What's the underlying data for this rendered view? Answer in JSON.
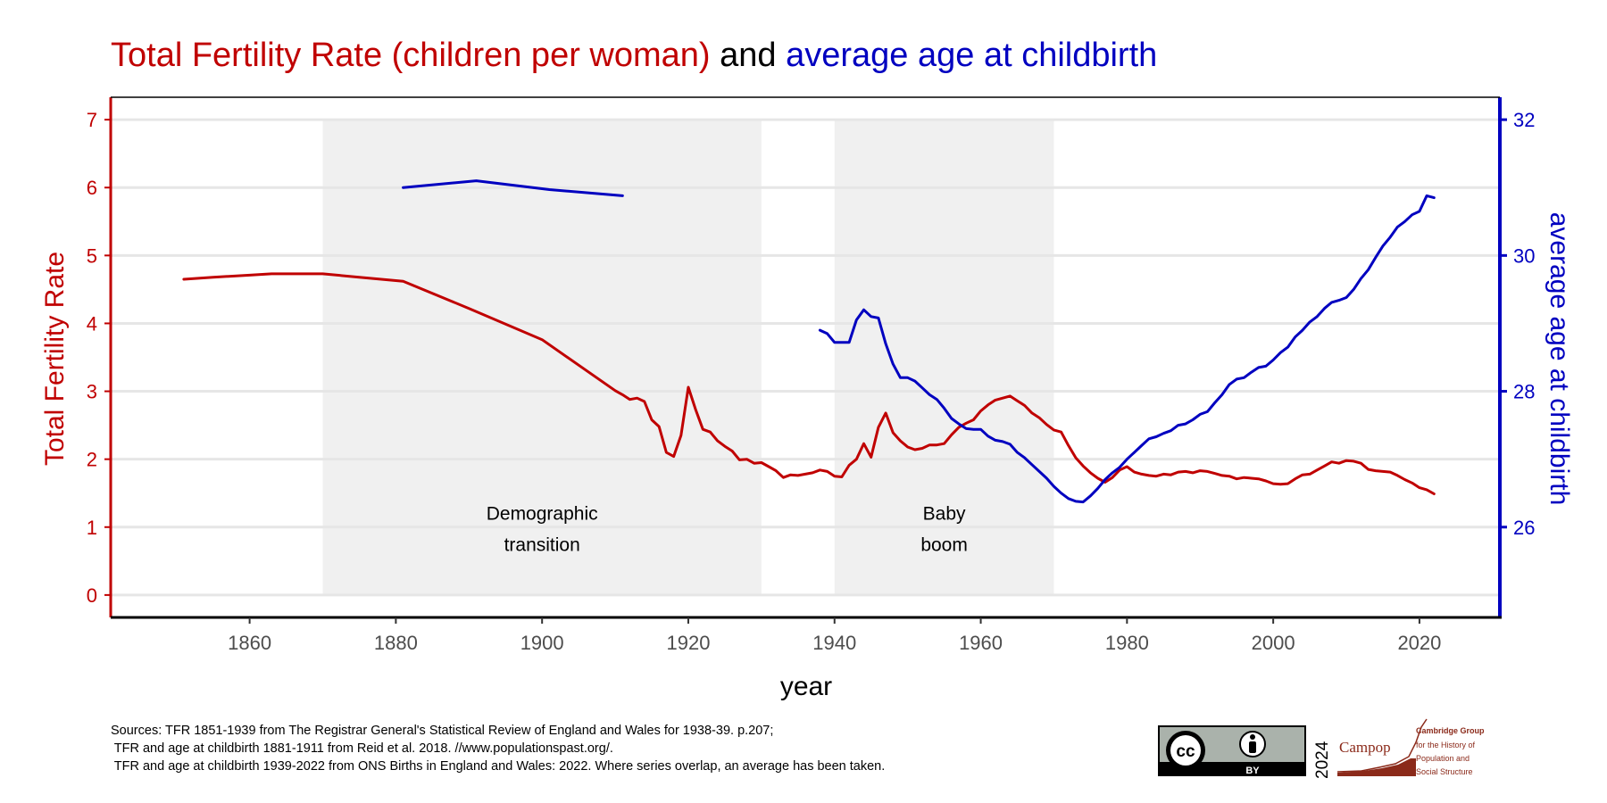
{
  "colors": {
    "tfr": "#c00000",
    "age": "#0000c0",
    "band": "#f0f0f0",
    "grid": "#e6e6e6",
    "axis_text": "#4d4d4d"
  },
  "title": {
    "part1": "Total Fertility Rate (children per woman)",
    "part2": " and ",
    "part3": "average age at childbirth"
  },
  "sources": {
    "line1": "Sources: TFR 1851-1939 from The Registrar General's Statistical Review of England and Wales for 1938-39. p.207;",
    "line2": " TFR and age at childbirth 1881-1911 from Reid et al. 2018. //www.populationspast.org/.",
    "line3": " TFR and age at childbirth 1939-2022 from ONS Births in England and Wales: 2022. Where series overlap, an average has been taken."
  },
  "logos": {
    "cc_badge": "BY",
    "cc_icon": "creative-commons-icon",
    "by_icon": "attribution-person-icon",
    "year": "2024",
    "campop_name": "Campop",
    "campop_lines": [
      "Cambridge Group",
      "for the History of",
      "Population and",
      "Social Structure"
    ]
  },
  "chart_data": {
    "type": "line",
    "xlabel": "year",
    "ylabel_left": "Total Fertility Rate",
    "ylabel_right": "average age at childbirth",
    "xlim": [
      1841,
      2031
    ],
    "ylim_left": [
      -0.33,
      7.33
    ],
    "ylim_right": [
      24.67,
      32.33
    ],
    "x_ticks": [
      1860,
      1880,
      1900,
      1920,
      1940,
      1960,
      1980,
      2000,
      2020
    ],
    "y_left_ticks": [
      0,
      1,
      2,
      3,
      4,
      5,
      6,
      7
    ],
    "y_right_ticks": [
      26,
      28,
      30,
      32
    ],
    "grid": true,
    "bands": [
      {
        "x0": 1870,
        "x1": 1930,
        "label_lines": [
          "Demographic",
          "transition"
        ],
        "label_y": 1.2
      },
      {
        "x0": 1940,
        "x1": 1970,
        "label_lines": [
          "Baby",
          "boom"
        ],
        "label_y": 1.2
      }
    ],
    "series": [
      {
        "name": "Total Fertility Rate",
        "axis": "left",
        "color": "#c00000",
        "segments": [
          [
            [
              1851,
              4.65
            ],
            [
              1855,
              4.68
            ],
            [
              1860,
              4.71
            ],
            [
              1863,
              4.73
            ],
            [
              1870,
              4.73
            ],
            [
              1875,
              4.68
            ],
            [
              1881,
              4.62
            ],
            [
              1890,
              4.22
            ],
            [
              1900,
              3.76
            ],
            [
              1910,
              3.01
            ],
            [
              1911,
              2.95
            ],
            [
              1912,
              2.88
            ],
            [
              1913,
              2.9
            ],
            [
              1914,
              2.85
            ],
            [
              1915,
              2.58
            ],
            [
              1916,
              2.48
            ],
            [
              1917,
              2.1
            ],
            [
              1918,
              2.04
            ],
            [
              1919,
              2.35
            ],
            [
              1920,
              3.06
            ],
            [
              1921,
              2.73
            ],
            [
              1922,
              2.44
            ],
            [
              1923,
              2.4
            ],
            [
              1924,
              2.27
            ],
            [
              1925,
              2.19
            ],
            [
              1926,
              2.12
            ],
            [
              1927,
              1.99
            ],
            [
              1928,
              2.0
            ],
            [
              1929,
              1.94
            ],
            [
              1930,
              1.95
            ],
            [
              1931,
              1.89
            ],
            [
              1932,
              1.83
            ],
            [
              1933,
              1.73
            ],
            [
              1934,
              1.77
            ],
            [
              1935,
              1.76
            ],
            [
              1936,
              1.78
            ],
            [
              1937,
              1.8
            ],
            [
              1938,
              1.84
            ],
            [
              1939,
              1.82
            ],
            [
              1940,
              1.75
            ],
            [
              1941,
              1.74
            ],
            [
              1942,
              1.91
            ],
            [
              1943,
              2.0
            ],
            [
              1944,
              2.23
            ],
            [
              1945,
              2.03
            ],
            [
              1946,
              2.47
            ],
            [
              1947,
              2.68
            ],
            [
              1948,
              2.39
            ],
            [
              1949,
              2.27
            ],
            [
              1950,
              2.18
            ],
            [
              1951,
              2.14
            ],
            [
              1952,
              2.16
            ],
            [
              1953,
              2.21
            ],
            [
              1954,
              2.21
            ],
            [
              1955,
              2.23
            ],
            [
              1956,
              2.36
            ],
            [
              1957,
              2.47
            ],
            [
              1958,
              2.53
            ],
            [
              1959,
              2.58
            ],
            [
              1960,
              2.71
            ],
            [
              1961,
              2.8
            ],
            [
              1962,
              2.87
            ],
            [
              1963,
              2.9
            ],
            [
              1964,
              2.93
            ],
            [
              1965,
              2.86
            ],
            [
              1966,
              2.79
            ],
            [
              1967,
              2.68
            ],
            [
              1968,
              2.61
            ],
            [
              1969,
              2.51
            ],
            [
              1970,
              2.43
            ],
            [
              1971,
              2.4
            ],
            [
              1972,
              2.2
            ],
            [
              1973,
              2.02
            ],
            [
              1974,
              1.9
            ],
            [
              1975,
              1.8
            ],
            [
              1976,
              1.72
            ],
            [
              1977,
              1.66
            ],
            [
              1978,
              1.73
            ],
            [
              1979,
              1.84
            ],
            [
              1980,
              1.89
            ],
            [
              1981,
              1.81
            ],
            [
              1982,
              1.78
            ],
            [
              1983,
              1.76
            ],
            [
              1984,
              1.75
            ],
            [
              1985,
              1.78
            ],
            [
              1986,
              1.77
            ],
            [
              1987,
              1.81
            ],
            [
              1988,
              1.82
            ],
            [
              1989,
              1.8
            ],
            [
              1990,
              1.83
            ],
            [
              1991,
              1.82
            ],
            [
              1992,
              1.79
            ],
            [
              1993,
              1.76
            ],
            [
              1994,
              1.75
            ],
            [
              1995,
              1.71
            ],
            [
              1996,
              1.73
            ],
            [
              1997,
              1.72
            ],
            [
              1998,
              1.71
            ],
            [
              1999,
              1.68
            ],
            [
              2000,
              1.64
            ],
            [
              2001,
              1.63
            ],
            [
              2002,
              1.64
            ],
            [
              2003,
              1.71
            ],
            [
              2004,
              1.77
            ],
            [
              2005,
              1.78
            ],
            [
              2006,
              1.84
            ],
            [
              2007,
              1.9
            ],
            [
              2008,
              1.96
            ],
            [
              2009,
              1.94
            ],
            [
              2010,
              1.98
            ],
            [
              2011,
              1.97
            ],
            [
              2012,
              1.94
            ],
            [
              2013,
              1.85
            ],
            [
              2014,
              1.83
            ],
            [
              2015,
              1.82
            ],
            [
              2016,
              1.81
            ],
            [
              2017,
              1.76
            ],
            [
              2018,
              1.7
            ],
            [
              2019,
              1.65
            ],
            [
              2020,
              1.58
            ],
            [
              2021,
              1.55
            ],
            [
              2022,
              1.49
            ]
          ]
        ]
      },
      {
        "name": "average age at childbirth",
        "axis": "right",
        "color": "#0000c0",
        "segments": [
          [
            [
              1881,
              31.0
            ],
            [
              1891,
              31.1
            ],
            [
              1901,
              30.97
            ],
            [
              1911,
              30.88
            ]
          ],
          [
            [
              1938,
              28.9
            ],
            [
              1939,
              28.85
            ],
            [
              1940,
              28.72
            ],
            [
              1941,
              28.72
            ],
            [
              1942,
              28.72
            ],
            [
              1943,
              29.05
            ],
            [
              1944,
              29.2
            ],
            [
              1945,
              29.1
            ],
            [
              1946,
              29.08
            ],
            [
              1947,
              28.7
            ],
            [
              1948,
              28.4
            ],
            [
              1949,
              28.2
            ],
            [
              1950,
              28.2
            ],
            [
              1951,
              28.15
            ],
            [
              1952,
              28.05
            ],
            [
              1953,
              27.95
            ],
            [
              1954,
              27.88
            ],
            [
              1955,
              27.75
            ],
            [
              1956,
              27.6
            ],
            [
              1957,
              27.52
            ],
            [
              1958,
              27.45
            ],
            [
              1959,
              27.44
            ],
            [
              1960,
              27.44
            ],
            [
              1961,
              27.34
            ],
            [
              1962,
              27.28
            ],
            [
              1963,
              27.26
            ],
            [
              1964,
              27.22
            ],
            [
              1965,
              27.1
            ],
            [
              1966,
              27.02
            ],
            [
              1967,
              26.92
            ],
            [
              1968,
              26.82
            ],
            [
              1969,
              26.72
            ],
            [
              1970,
              26.6
            ],
            [
              1971,
              26.5
            ],
            [
              1972,
              26.42
            ],
            [
              1973,
              26.38
            ],
            [
              1974,
              26.37
            ],
            [
              1975,
              26.46
            ],
            [
              1976,
              26.57
            ],
            [
              1977,
              26.7
            ],
            [
              1978,
              26.8
            ],
            [
              1979,
              26.88
            ],
            [
              1980,
              27.0
            ],
            [
              1981,
              27.1
            ],
            [
              1982,
              27.2
            ],
            [
              1983,
              27.3
            ],
            [
              1984,
              27.33
            ],
            [
              1985,
              27.38
            ],
            [
              1986,
              27.42
            ],
            [
              1987,
              27.5
            ],
            [
              1988,
              27.52
            ],
            [
              1989,
              27.58
            ],
            [
              1990,
              27.66
            ],
            [
              1991,
              27.7
            ],
            [
              1992,
              27.83
            ],
            [
              1993,
              27.95
            ],
            [
              1994,
              28.1
            ],
            [
              1995,
              28.18
            ],
            [
              1996,
              28.2
            ],
            [
              1997,
              28.28
            ],
            [
              1998,
              28.35
            ],
            [
              1999,
              28.37
            ],
            [
              2000,
              28.46
            ],
            [
              2001,
              28.57
            ],
            [
              2002,
              28.65
            ],
            [
              2003,
              28.8
            ],
            [
              2004,
              28.9
            ],
            [
              2005,
              29.02
            ],
            [
              2006,
              29.1
            ],
            [
              2007,
              29.22
            ],
            [
              2008,
              29.31
            ],
            [
              2009,
              29.34
            ],
            [
              2010,
              29.38
            ],
            [
              2011,
              29.5
            ],
            [
              2012,
              29.66
            ],
            [
              2013,
              29.79
            ],
            [
              2014,
              29.97
            ],
            [
              2015,
              30.14
            ],
            [
              2016,
              30.27
            ],
            [
              2017,
              30.42
            ],
            [
              2018,
              30.5
            ],
            [
              2019,
              30.6
            ],
            [
              2020,
              30.65
            ],
            [
              2021,
              30.88
            ],
            [
              2022,
              30.85
            ]
          ]
        ]
      }
    ]
  }
}
